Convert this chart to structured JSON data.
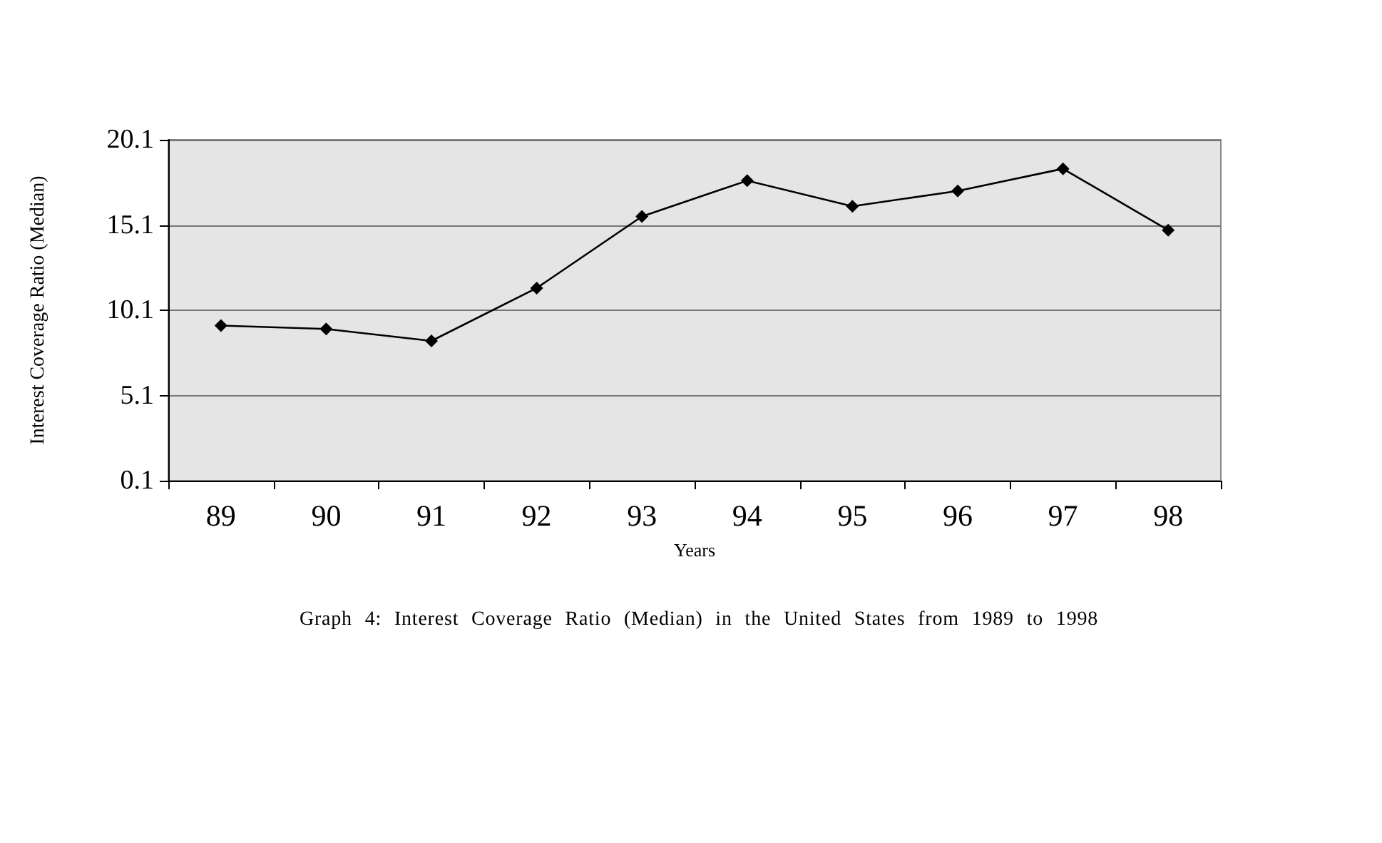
{
  "chart_data": {
    "type": "line",
    "xlabel": "Years",
    "ylabel": "Interest Coverage Ratio (Median)",
    "categories": [
      "89",
      "90",
      "91",
      "92",
      "93",
      "94",
      "95",
      "96",
      "97",
      "98"
    ],
    "series": [
      {
        "color": "#000000",
        "values": [
          9.2,
          9.0,
          8.3,
          11.4,
          15.6,
          17.7,
          16.2,
          17.1,
          18.4,
          14.8
        ]
      }
    ],
    "ylim": [
      0.1,
      20.1
    ],
    "yticks": [
      0.1,
      5.1,
      10.1,
      15.1,
      20.1
    ],
    "grid": "y",
    "marker": "diamond",
    "annotations": [
      "Graph 4: Interest  Coverage  Ratio  (Median) in the United States  from 1989 to 1998"
    ]
  }
}
